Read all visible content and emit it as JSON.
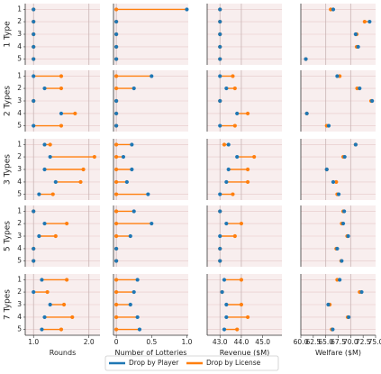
{
  "chart_data": {
    "type": "scatter",
    "colors": {
      "player": "#1f77b4",
      "license": "#ff7f0e",
      "panel_bg": "#f8eeee",
      "row_line": "#e6c8c8"
    },
    "legend": {
      "location": "bottom-center",
      "entries": [
        "Drop by Player",
        "Drop by License"
      ]
    },
    "x_axes": [
      {
        "label": "Rounds",
        "xlim": [
          0.85,
          2.2
        ],
        "ticks": [
          1.0,
          2.0
        ],
        "tick_labels": [
          "1.0",
          "2.0"
        ],
        "gridlines": [
          1.0,
          2.0
        ]
      },
      {
        "label": "Number of Lotteries",
        "xlim": [
          -0.04,
          1.02
        ],
        "ticks": [
          0.0,
          0.5,
          1.0
        ],
        "tick_labels": [
          "0",
          "0.5",
          "1.0"
        ],
        "gridlines": [
          0.0
        ]
      },
      {
        "label": "Revenue ($M)",
        "xlim": [
          42.4,
          45.9
        ],
        "ticks": [
          43.0,
          44.0,
          45.0
        ],
        "tick_labels": [
          "43.0",
          "44.0",
          "45.0"
        ],
        "gridlines": [
          43.0,
          44.0
        ]
      },
      {
        "label": "Welfare ($M)",
        "xlim": [
          60.0,
          75.0
        ],
        "ticks": [
          60.0,
          62.5,
          65.0,
          67.5,
          70.0,
          72.5,
          75.0
        ],
        "tick_labels": [
          "60.0",
          "62.5",
          "65.0",
          "67.5",
          "70.0",
          "72.5",
          "75.0"
        ],
        "gridlines": [
          65.0,
          70.0
        ]
      }
    ],
    "row_ticks": [
      "1",
      "2",
      "3",
      "4",
      "5"
    ],
    "groups": [
      {
        "label": "1 Type",
        "metrics": [
          {
            "player": [
              1.0,
              1.0,
              1.0,
              1.0,
              1.0
            ],
            "license": [
              1.0,
              1.0,
              1.0,
              1.0,
              1.0
            ]
          },
          {
            "player": [
              1.0,
              0.0,
              0.0,
              0.0,
              0.0
            ],
            "license": [
              0.0,
              0.0,
              0.0,
              0.0,
              0.0
            ]
          },
          {
            "player": [
              43.0,
              43.0,
              43.0,
              43.0,
              43.0
            ],
            "license": [
              43.0,
              43.0,
              43.0,
              43.0,
              43.0
            ]
          },
          {
            "player": [
              66.5,
              73.8,
              71.0,
              71.5,
              61.0
            ],
            "license": [
              66.0,
              72.8,
              71.2,
              71.2,
              61.0
            ]
          }
        ]
      },
      {
        "label": "2 Types",
        "metrics": [
          {
            "player": [
              1.0,
              1.2,
              1.0,
              1.5,
              1.0
            ],
            "license": [
              1.5,
              1.5,
              1.0,
              1.75,
              1.5
            ]
          },
          {
            "player": [
              0.5,
              0.25,
              0.0,
              0.0,
              0.0
            ],
            "license": [
              0.0,
              0.0,
              0.0,
              0.0,
              0.0
            ]
          },
          {
            "player": [
              43.0,
              43.3,
              43.0,
              43.8,
              43.0
            ],
            "license": [
              43.6,
              43.7,
              43.0,
              44.3,
              43.7
            ]
          },
          {
            "player": [
              67.3,
              71.8,
              74.3,
              61.2,
              65.6
            ],
            "license": [
              67.8,
              71.3,
              74.1,
              61.2,
              65.2
            ]
          }
        ]
      },
      {
        "label": "3 Types",
        "metrics": [
          {
            "player": [
              1.2,
              1.3,
              1.2,
              1.4,
              1.1
            ],
            "license": [
              1.3,
              2.1,
              1.9,
              1.85,
              1.35
            ]
          },
          {
            "player": [
              0.22,
              0.1,
              0.22,
              0.15,
              0.45
            ],
            "license": [
              0.0,
              0.0,
              0.0,
              0.0,
              0.0
            ]
          },
          {
            "player": [
              43.4,
              43.8,
              43.4,
              43.3,
              43.0
            ],
            "license": [
              43.2,
              44.6,
              44.3,
              44.3,
              43.6
            ]
          },
          {
            "player": [
              71.0,
              68.8,
              65.2,
              66.5,
              67.6
            ],
            "license": [
              71.0,
              68.5,
              65.2,
              67.1,
              67.3
            ]
          }
        ]
      },
      {
        "label": "5 Types",
        "metrics": [
          {
            "player": [
              1.0,
              1.2,
              1.1,
              1.0,
              1.0
            ],
            "license": [
              1.0,
              1.6,
              1.4,
              1.0,
              1.0
            ]
          },
          {
            "player": [
              0.25,
              0.5,
              0.2,
              0.0,
              0.0
            ],
            "license": [
              0.0,
              0.0,
              0.0,
              0.0,
              0.0
            ]
          },
          {
            "player": [
              43.0,
              43.3,
              43.0,
              43.0,
              43.0
            ],
            "license": [
              43.0,
              44.0,
              43.7,
              43.0,
              43.0
            ]
          },
          {
            "player": [
              68.7,
              68.5,
              69.5,
              67.3,
              68.2
            ],
            "license": [
              68.5,
              68.2,
              69.3,
              67.1,
              68.1
            ]
          }
        ]
      },
      {
        "label": "7 Types",
        "metrics": [
          {
            "player": [
              1.15,
              1.0,
              1.3,
              1.2,
              1.15
            ],
            "license": [
              1.6,
              1.25,
              1.55,
              1.7,
              1.5
            ]
          },
          {
            "player": [
              0.3,
              0.25,
              0.2,
              0.3,
              0.33
            ],
            "license": [
              0.0,
              0.0,
              0.0,
              0.0,
              0.0
            ]
          },
          {
            "player": [
              43.2,
              43.1,
              43.3,
              43.3,
              43.2
            ],
            "license": [
              44.0,
              43.1,
              44.0,
              44.3,
              43.8
            ]
          },
          {
            "player": [
              67.8,
              72.2,
              65.5,
              69.6,
              66.4
            ],
            "license": [
              67.3,
              71.8,
              65.8,
              69.4,
              66.2
            ]
          }
        ]
      }
    ]
  }
}
